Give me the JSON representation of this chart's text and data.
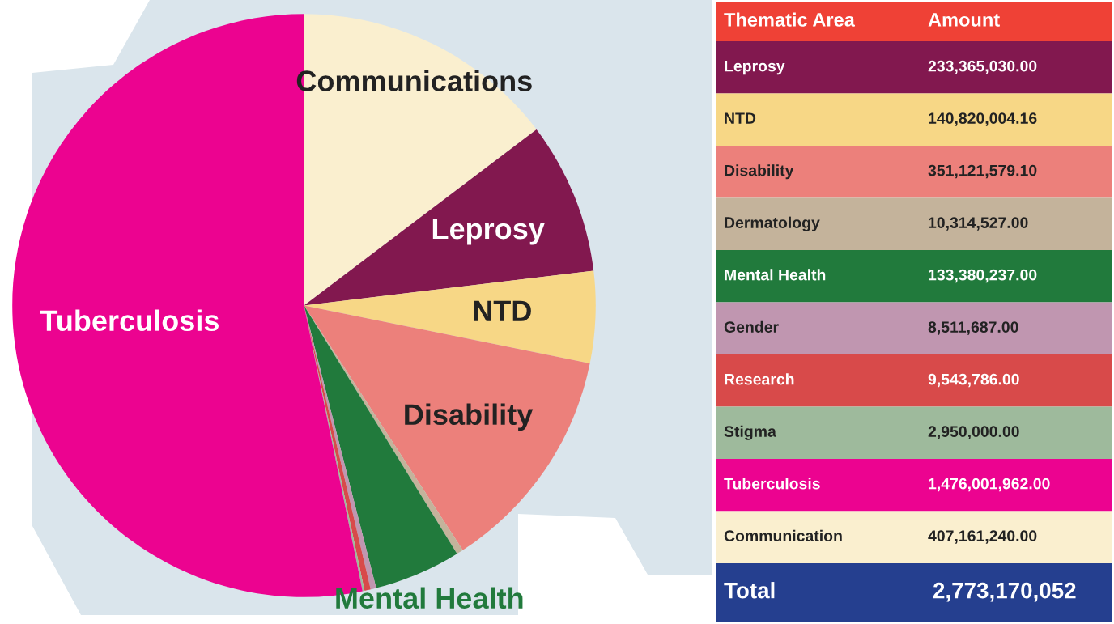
{
  "chart_data": [
    {
      "type": "pie",
      "categories": [
        "Communications",
        "Leprosy",
        "NTD",
        "Disability",
        null,
        "Mental Health",
        null,
        null,
        null,
        "Tuberculosis"
      ],
      "values": [
        14.68,
        8.42,
        5.08,
        12.66,
        0.37,
        4.81,
        0.31,
        0.34,
        0.11,
        53.22
      ],
      "colors": [
        "#faefcf",
        "#82184f",
        "#f7d786",
        "#ec807b",
        "#c4b39b",
        "#217a3c",
        "#c096b0",
        "#d84a4a",
        "#9eba9c",
        "#ec0390"
      ]
    },
    {
      "type": "other",
      "categories": [
        "Leprosy",
        "NTD",
        "Disability",
        "Dermatology",
        "Mental Health",
        "Gender",
        "Research",
        "Stigma",
        "Tuberculosis",
        "Communication"
      ],
      "value_labels": [
        "233,365,030.00",
        "140,820,004.16",
        "351,121,579.10",
        "10,314,527.00",
        "133,380,237.00",
        "8,511,687.00",
        "9,543,786.00",
        "2,950,000.00",
        "1,476,001,962.00",
        "407,161,240.00"
      ],
      "colors": [
        "#82184f",
        "#f7d786",
        "#ec807b",
        "#c4b39b",
        "#217a3c",
        "#c096b0",
        "#d84a4a",
        "#9eba9c",
        "#ec0390",
        "#faefcf"
      ],
      "annotations": [
        "Thematic Area",
        "Amount",
        "Total"
      ],
      "totals": [
        "2,773,170,052"
      ]
    }
  ]
}
